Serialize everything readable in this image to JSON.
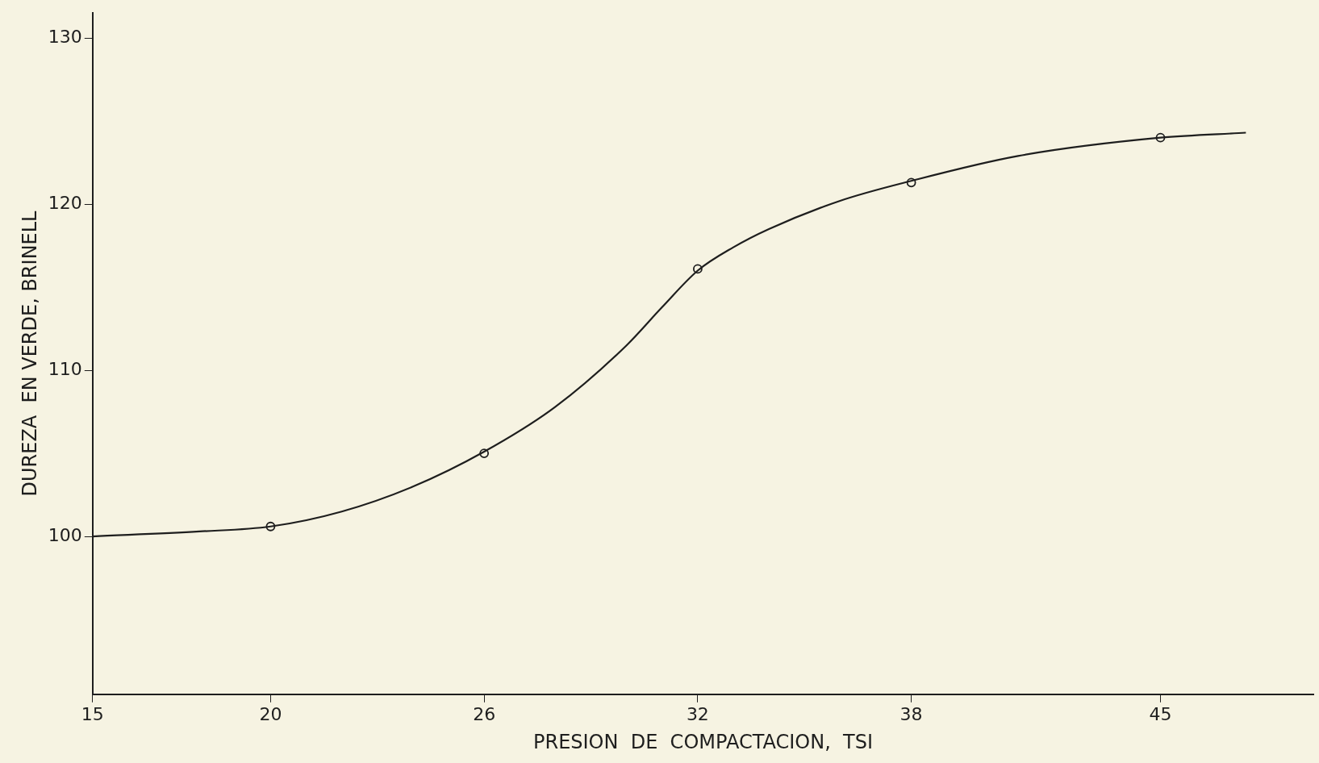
{
  "chart_data": {
    "type": "scatter",
    "xlabel": "PRESION  DE  COMPACTACION,  TSI",
    "ylabel": "DUREZA  EN VERDE, BRINELL",
    "xlim": [
      15,
      49.3
    ],
    "xticks": [
      15,
      20,
      26,
      32,
      38,
      45
    ],
    "ylim": [
      90.5,
      131.5
    ],
    "yticks": [
      100,
      110,
      120,
      130
    ],
    "grid": false,
    "legend": false,
    "series": [
      {
        "type": "line",
        "marker": "none",
        "line_style": "solid",
        "color": "#1e1e1e",
        "x": [
          15,
          18,
          20,
          22,
          24,
          26,
          28,
          30,
          31,
          32,
          33,
          34,
          36,
          38,
          41,
          45,
          47.4
        ],
        "values": [
          100,
          100.3,
          100.6,
          101.5,
          103,
          105.1,
          107.8,
          111.5,
          113.8,
          116,
          117.4,
          118.5,
          120.2,
          121.4,
          122.9,
          124,
          124.3
        ]
      },
      {
        "type": "scatter",
        "marker": "circle",
        "color": "#1e1e1e",
        "x": [
          20,
          26,
          32,
          38,
          45
        ],
        "values": [
          100.6,
          105,
          116.1,
          121.3,
          124
        ]
      }
    ]
  }
}
